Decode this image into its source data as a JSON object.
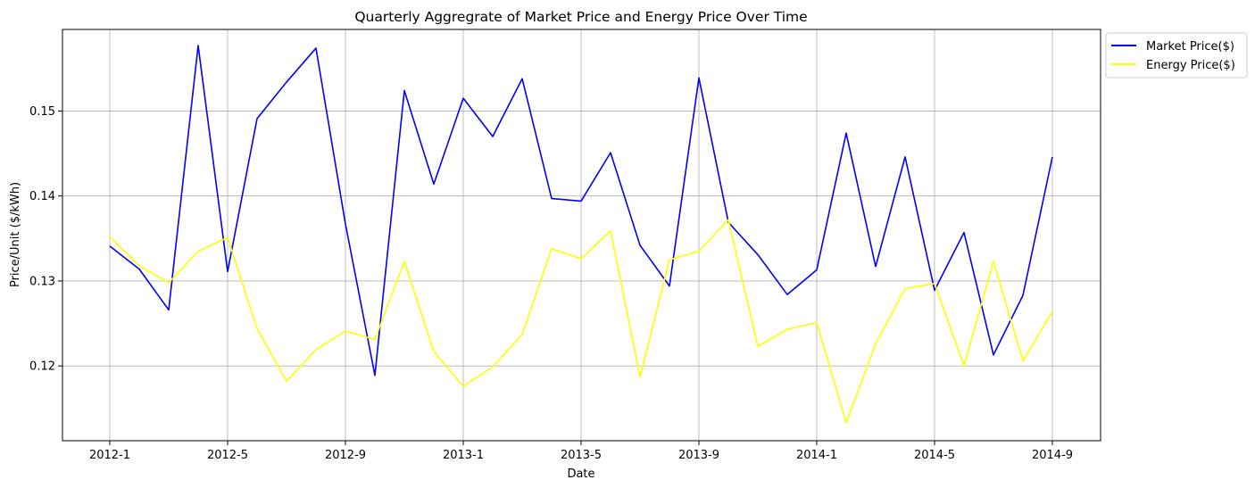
{
  "chart_data": {
    "type": "line",
    "title": "Quarterly Aggregrate of Market Price and Energy Price Over Time",
    "xlabel": "Date",
    "ylabel": "Price/Unit ($/kWh)",
    "x": [
      "2012-1",
      "2012-2",
      "2012-3",
      "2012-4",
      "2012-5",
      "2012-6",
      "2012-7",
      "2012-8",
      "2012-9",
      "2012-10",
      "2012-11",
      "2012-12",
      "2013-1",
      "2013-2",
      "2013-3",
      "2013-4",
      "2013-5",
      "2013-6",
      "2013-7",
      "2013-8",
      "2013-9",
      "2013-10",
      "2013-11",
      "2013-12",
      "2014-1",
      "2014-2",
      "2014-3",
      "2014-4",
      "2014-5",
      "2014-6",
      "2014-7",
      "2014-8",
      "2014-9"
    ],
    "xticks": [
      "2012-1",
      "2012-5",
      "2012-9",
      "2013-1",
      "2013-5",
      "2013-9",
      "2014-1",
      "2014-5",
      "2014-9"
    ],
    "yticks": [
      0.12,
      0.13,
      0.14,
      0.15
    ],
    "ytick_labels": [
      "0.12",
      "0.13",
      "0.14",
      "0.15"
    ],
    "ylim": [
      0.1112,
      0.1596
    ],
    "grid": true,
    "legend_position": "outside-top-right",
    "series": [
      {
        "name": "Market Price($)",
        "color": "#0000ff",
        "values": [
          0.1341,
          0.1314,
          0.1266,
          0.1577,
          0.1311,
          0.1491,
          0.1534,
          0.1574,
          0.1367,
          0.1189,
          0.1524,
          0.1414,
          0.1515,
          0.147,
          0.1538,
          0.1397,
          0.1394,
          0.1451,
          0.1342,
          0.1294,
          0.1539,
          0.1369,
          0.1331,
          0.1284,
          0.1313,
          0.1474,
          0.1317,
          0.1446,
          0.1289,
          0.1357,
          0.1213,
          0.1283,
          0.1446
        ]
      },
      {
        "name": "Energy Price($)",
        "color": "#ffff00",
        "values": [
          0.1352,
          0.1318,
          0.1298,
          0.1335,
          0.1351,
          0.1244,
          0.1182,
          0.1219,
          0.1241,
          0.1231,
          0.1323,
          0.1217,
          0.1176,
          0.1199,
          0.1237,
          0.1338,
          0.1326,
          0.1359,
          0.1187,
          0.1325,
          0.1335,
          0.1372,
          0.1223,
          0.1243,
          0.1251,
          0.1133,
          0.1226,
          0.1291,
          0.1297,
          0.12,
          0.1323,
          0.1206,
          0.1264
        ]
      }
    ]
  }
}
